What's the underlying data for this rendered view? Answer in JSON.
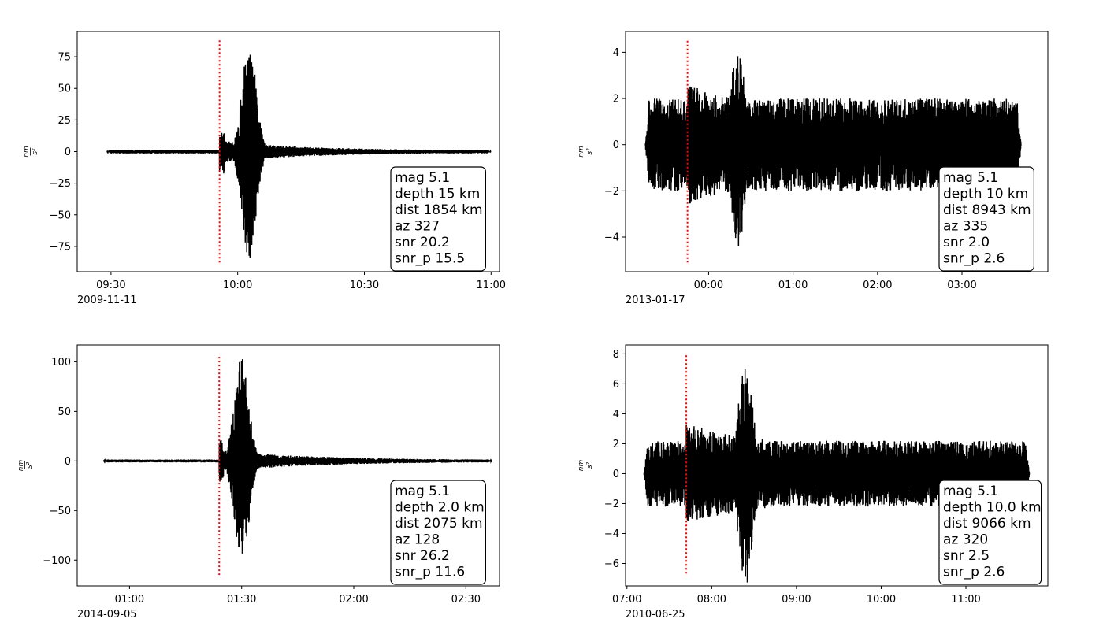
{
  "chart_data": [
    {
      "type": "line",
      "date_label": "2009-11-11",
      "ylabel": "nm/s²",
      "ylabel_num": "nm",
      "ylabel_den": "s²",
      "x_tick_labels": [
        "09:30",
        "10:00",
        "10:30",
        "11:00"
      ],
      "x_ticks_min": [
        -30,
        0,
        30,
        60
      ],
      "xlim_min": [
        -38,
        62
      ],
      "y_ticks": [
        -75,
        -50,
        -25,
        0,
        25,
        50,
        75
      ],
      "ylim": [
        -95,
        95
      ],
      "trace": {
        "color": "#000000",
        "start_min": -31,
        "end_min": 60,
        "noise_amp": 1.5,
        "onset_min": -4.3,
        "pulse_min": 2.7,
        "peak_amp": 87,
        "coda_amp": 8,
        "coda_decay_min": 20
      },
      "p_arrival": {
        "time_min": -4.3,
        "color": "#ff0000",
        "y_range": [
          -88,
          88
        ]
      },
      "info_box": [
        "mag 5.1",
        "depth 15 km",
        "dist 1854 km",
        "az 327",
        "snr 20.2",
        "snr_p 15.5"
      ]
    },
    {
      "type": "line",
      "date_label": "2013-01-17",
      "ylabel": "nm/s²",
      "ylabel_num": "nm",
      "ylabel_den": "s²",
      "x_tick_labels": [
        "00:00",
        "01:00",
        "02:00",
        "03:00"
      ],
      "x_ticks_min": [
        0,
        60,
        120,
        180
      ],
      "xlim_min": [
        -59,
        241
      ],
      "y_ticks": [
        -4,
        -2,
        0,
        2,
        4
      ],
      "ylim": [
        -5.5,
        4.9
      ],
      "trace": {
        "color": "#000000",
        "start_min": -45,
        "end_min": 222,
        "noise_amp": 2.0,
        "onset_min": -15,
        "pulse_min": 21,
        "peak_amp": 4.4,
        "coda_amp": 1.4,
        "coda_decay_min": 60
      },
      "p_arrival": {
        "time_min": -15,
        "color": "#ff0000",
        "y_range": [
          -5.1,
          4.5
        ]
      },
      "info_box": [
        "mag 5.1",
        "depth 10 km",
        "dist 8943 km",
        "az 335",
        "snr 2.0",
        "snr_p 2.6"
      ]
    },
    {
      "type": "line",
      "date_label": "2014-09-05",
      "ylabel": "nm/s²",
      "ylabel_num": "nm",
      "ylabel_den": "s²",
      "x_tick_labels": [
        "01:00",
        "01:30",
        "02:00",
        "02:30"
      ],
      "x_ticks_min": [
        60,
        90,
        120,
        150
      ],
      "xlim_min": [
        46,
        159
      ],
      "y_ticks": [
        -100,
        -50,
        0,
        50,
        100
      ],
      "ylim": [
        -126,
        117
      ],
      "trace": {
        "color": "#000000",
        "start_min": 53,
        "end_min": 157,
        "noise_amp": 1.5,
        "onset_min": 84,
        "pulse_min": 90,
        "peak_amp": 105,
        "coda_amp": 10,
        "coda_decay_min": 25
      },
      "p_arrival": {
        "time_min": 84,
        "color": "#ff0000",
        "y_range": [
          -116,
          105
        ]
      },
      "info_box": [
        "mag 5.1",
        "depth 2.0 km",
        "dist 2075 km",
        "az 128",
        "snr 26.2",
        "snr_p 11.6"
      ]
    },
    {
      "type": "line",
      "date_label": "2010-06-25",
      "ylabel": "nm/s²",
      "ylabel_num": "nm",
      "ylabel_den": "s²",
      "x_tick_labels": [
        "07:00",
        "08:00",
        "09:00",
        "10:00",
        "11:00"
      ],
      "x_ticks_min": [
        420,
        480,
        540,
        600,
        660
      ],
      "xlim_min": [
        419,
        718
      ],
      "y_ticks": [
        -6,
        -4,
        -2,
        0,
        2,
        4,
        6,
        8
      ],
      "ylim": [
        -7.5,
        8.6
      ],
      "trace": {
        "color": "#000000",
        "start_min": 432,
        "end_min": 705,
        "noise_amp": 2.2,
        "onset_min": 462,
        "pulse_min": 504,
        "peak_amp": 7.8,
        "coda_amp": 2.0,
        "coda_decay_min": 80
      },
      "p_arrival": {
        "time_min": 462,
        "color": "#ff0000",
        "y_range": [
          -6.7,
          7.9
        ]
      },
      "info_box": [
        "mag 5.1",
        "depth 10.0 km",
        "dist 9066 km",
        "az 320",
        "snr 2.5",
        "snr_p 2.6"
      ]
    }
  ]
}
